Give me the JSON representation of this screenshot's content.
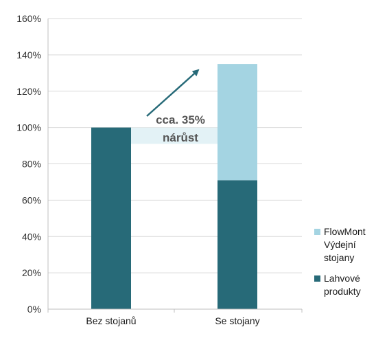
{
  "chart_data": {
    "type": "bar",
    "stacked": true,
    "categories": [
      "Bez stojanů",
      "Se stojany"
    ],
    "series": [
      {
        "name": "Lahvové produkty",
        "values": [
          100,
          71
        ],
        "color": "#276a78"
      },
      {
        "name": "FlowMont Výdejní stojany",
        "values": [
          0,
          64
        ],
        "color": "#a4d4e2"
      }
    ],
    "ylim": [
      0,
      160
    ],
    "yticks": [
      0,
      20,
      40,
      60,
      80,
      100,
      120,
      140,
      160
    ],
    "ytick_format": "percent",
    "grid": true,
    "legend_position": "right",
    "annotation": {
      "lines": [
        "cca. 35%",
        "nárůst"
      ],
      "band_from": 91,
      "band_to": 100,
      "highlight_color": "#e3f2f6",
      "arrow_color": "#276a78"
    }
  }
}
